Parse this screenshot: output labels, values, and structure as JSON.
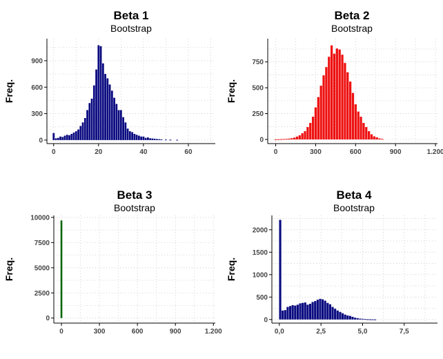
{
  "chart_data": [
    {
      "type": "bar",
      "title": "Beta 1",
      "subtitle": "Bootstrap",
      "ylabel": "Freq.",
      "xlabel": "",
      "color": "#0a0a80",
      "xlim": [
        -3,
        72
      ],
      "ylim": [
        -40,
        1150
      ],
      "xticks": [
        0,
        20,
        40,
        60
      ],
      "xtick_labels": [
        "0",
        "20",
        "40",
        "60"
      ],
      "yticks": [
        0,
        300,
        600,
        900
      ],
      "ytick_labels": [
        "0",
        "300",
        "600",
        "900"
      ],
      "bar_width": 0.85,
      "x": [
        0,
        1,
        2,
        3,
        4,
        5,
        6,
        7,
        8,
        9,
        10,
        11,
        12,
        13,
        14,
        15,
        16,
        17,
        18,
        19,
        20,
        21,
        22,
        23,
        24,
        25,
        26,
        27,
        28,
        29,
        30,
        31,
        32,
        33,
        34,
        35,
        36,
        37,
        38,
        39,
        40,
        41,
        42,
        43,
        44,
        45,
        46,
        47,
        48,
        50,
        52,
        55
      ],
      "values": [
        80,
        20,
        25,
        40,
        35,
        50,
        60,
        55,
        70,
        85,
        100,
        120,
        160,
        200,
        250,
        340,
        420,
        470,
        620,
        800,
        1075,
        1065,
        870,
        750,
        700,
        630,
        560,
        480,
        410,
        340,
        340,
        260,
        200,
        130,
        100,
        90,
        70,
        60,
        50,
        40,
        40,
        25,
        30,
        20,
        18,
        15,
        12,
        10,
        8,
        6,
        4,
        3
      ]
    },
    {
      "type": "bar",
      "title": "Beta 2",
      "subtitle": "Bootstrap",
      "ylabel": "Freq.",
      "xlabel": "",
      "color": "#ee1111",
      "xlim": [
        -60,
        1215
      ],
      "ylim": [
        -40,
        975
      ],
      "xticks": [
        0,
        300,
        600,
        900,
        1200
      ],
      "xtick_labels": [
        "0",
        "300",
        "600",
        "900",
        "1.200"
      ],
      "yticks": [
        0,
        250,
        500,
        750
      ],
      "ytick_labels": [
        "0",
        "250",
        "500",
        "750"
      ],
      "bar_width": 17,
      "x": [
        0,
        20,
        40,
        60,
        80,
        100,
        120,
        140,
        160,
        180,
        200,
        220,
        240,
        260,
        280,
        300,
        320,
        340,
        360,
        380,
        400,
        420,
        440,
        460,
        480,
        500,
        520,
        540,
        560,
        580,
        600,
        620,
        640,
        660,
        680,
        700,
        720,
        740,
        760,
        780,
        800
      ],
      "values": [
        1,
        2,
        3,
        4,
        6,
        8,
        12,
        18,
        28,
        40,
        60,
        80,
        120,
        160,
        220,
        310,
        410,
        520,
        620,
        700,
        800,
        910,
        830,
        880,
        870,
        820,
        740,
        650,
        560,
        450,
        340,
        270,
        220,
        160,
        120,
        80,
        50,
        30,
        20,
        10,
        6
      ]
    },
    {
      "type": "bar",
      "title": "Beta 3",
      "subtitle": "Bootstrap",
      "ylabel": "Freq.",
      "xlabel": "",
      "color": "#006400",
      "xlim": [
        -60,
        1215
      ],
      "ylim": [
        -500,
        10200
      ],
      "xticks": [
        0,
        300,
        600,
        900,
        1200
      ],
      "xtick_labels": [
        "0",
        "300",
        "600",
        "900",
        "1.200"
      ],
      "yticks": [
        0,
        2500,
        5000,
        7500,
        10000
      ],
      "ytick_labels": [
        "0",
        "2500",
        "5000",
        "7500",
        "10000"
      ],
      "bar_width": 14,
      "x": [
        0
      ],
      "values": [
        9700
      ]
    },
    {
      "type": "bar",
      "title": "Beta 4",
      "subtitle": "Bootstrap",
      "ylabel": "Freq.",
      "xlabel": "",
      "color": "#0a0a80",
      "xlim": [
        -0.45,
        9.5
      ],
      "ylim": [
        -80,
        2320
      ],
      "xticks": [
        0,
        2.5,
        5,
        7.5
      ],
      "xtick_labels": [
        "0,0",
        "2,5",
        "5,0",
        "7,5"
      ],
      "yticks": [
        0,
        500,
        1000,
        1500,
        2000
      ],
      "ytick_labels": [
        "0",
        "500",
        "1000",
        "1500",
        "2000"
      ],
      "bar_width": 0.13,
      "x": [
        0.05,
        0.2,
        0.35,
        0.5,
        0.65,
        0.8,
        0.95,
        1.1,
        1.25,
        1.4,
        1.55,
        1.7,
        1.85,
        2.0,
        2.15,
        2.3,
        2.45,
        2.6,
        2.75,
        2.9,
        3.05,
        3.2,
        3.35,
        3.5,
        3.65,
        3.8,
        3.95,
        4.1,
        4.25,
        4.4,
        4.55,
        4.7,
        4.85,
        5.0,
        5.15,
        5.3,
        5.45,
        5.6,
        5.75
      ],
      "values": [
        2220,
        200,
        210,
        280,
        300,
        320,
        310,
        330,
        360,
        370,
        380,
        330,
        350,
        390,
        410,
        440,
        460,
        450,
        420,
        370,
        340,
        280,
        240,
        200,
        170,
        140,
        110,
        90,
        80,
        60,
        40,
        30,
        20,
        15,
        10,
        6,
        4,
        3,
        2
      ]
    }
  ]
}
